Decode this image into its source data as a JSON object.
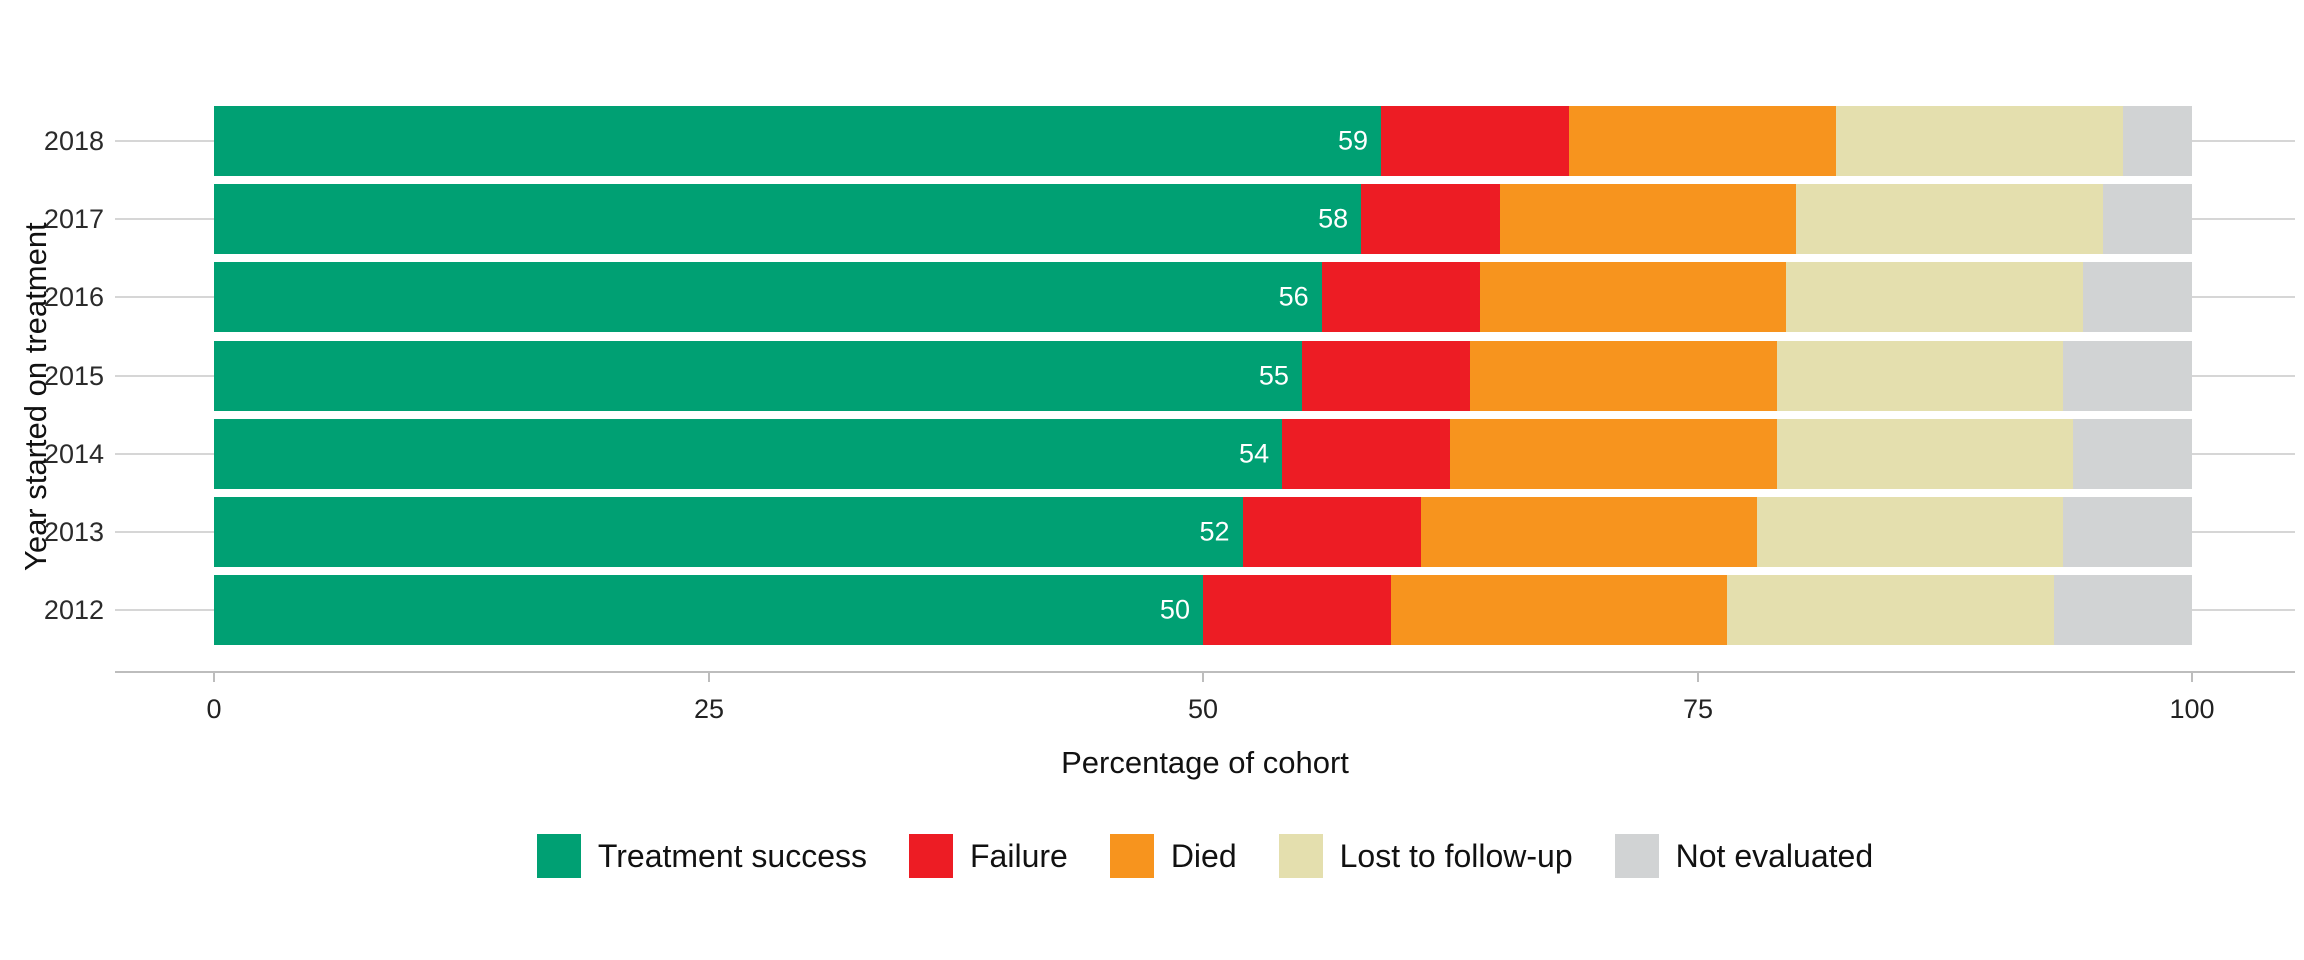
{
  "chart": {
    "xlabel": "Percentage of cohort",
    "ylabel": "Year started on treatment",
    "x_tick_labels": [
      "0",
      "25",
      "50",
      "75",
      "100"
    ],
    "x_tick_values": [
      0,
      25,
      50,
      75,
      100
    ]
  },
  "colors": {
    "treatment_success": "#00A073",
    "failure": "#ED1C24",
    "died": "#F7941E",
    "lost_to_follow_up": "#E4DFAE",
    "not_evaluated": "#D1D3D4",
    "gridline": "#D6D6D6",
    "axis_line": "#BDBDBD"
  },
  "chart_data": {
    "type": "bar",
    "orientation": "horizontal",
    "stacked": true,
    "title": "",
    "xlabel": "Percentage of cohort",
    "ylabel": "Year started on treatment",
    "xlim": [
      0,
      100
    ],
    "grid": "horizontal",
    "legend_position": "bottom",
    "categories": [
      "2018",
      "2017",
      "2016",
      "2015",
      "2014",
      "2013",
      "2012"
    ],
    "series": [
      {
        "name": "Treatment success",
        "color": "#00A073",
        "values": [
          59,
          58,
          56,
          55,
          54,
          52,
          50
        ]
      },
      {
        "name": "Failure",
        "color": "#ED1C24",
        "values": [
          9.5,
          7,
          8,
          8.5,
          8.5,
          9,
          9.5
        ]
      },
      {
        "name": "Died",
        "color": "#F7941E",
        "values": [
          13.5,
          15,
          15.5,
          15.5,
          16.5,
          17,
          17
        ]
      },
      {
        "name": "Lost to follow-up",
        "color": "#E4DFAE",
        "values": [
          14.5,
          15.5,
          15,
          14.5,
          15,
          15.5,
          16.5
        ]
      },
      {
        "name": "Not evaluated",
        "color": "#D1D3D4",
        "values": [
          3.5,
          4.5,
          5.5,
          6.5,
          6,
          6.5,
          7
        ]
      }
    ],
    "bar_labels": [
      "59",
      "58",
      "56",
      "55",
      "54",
      "52",
      "50"
    ],
    "bar_label_series": "Treatment success"
  }
}
